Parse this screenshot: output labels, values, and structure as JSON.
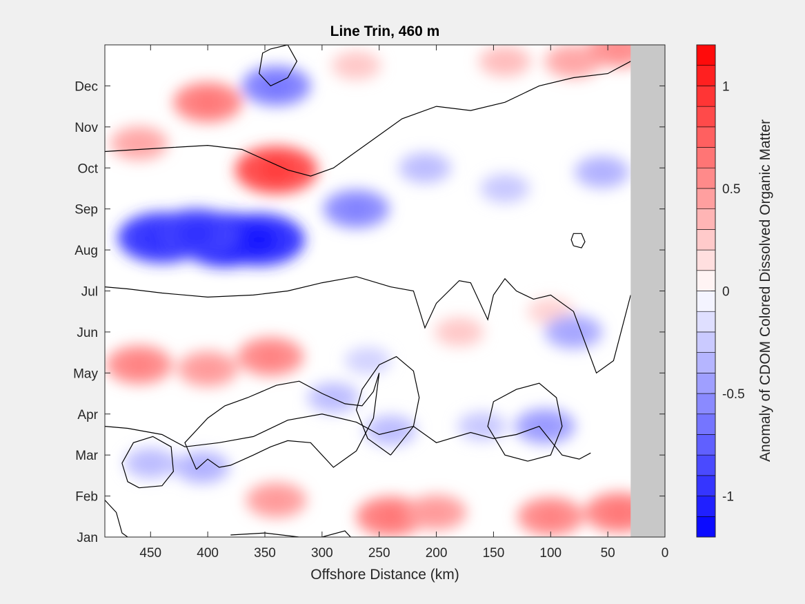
{
  "chart_data": {
    "type": "heatmap",
    "title": "Line Trin, 460 m",
    "xlabel": "Offshore Distance (km)",
    "ylabel": "",
    "colorbar_label": "Anomaly of CDOM Colored Dissolved Organic Matter",
    "x_ticks": [
      450,
      400,
      350,
      300,
      250,
      200,
      150,
      100,
      50,
      0
    ],
    "x_tick_labels": [
      "450",
      "400",
      "350",
      "300",
      "250",
      "200",
      "150",
      "100",
      "50",
      "0"
    ],
    "xlim": [
      490,
      0
    ],
    "x_reversed": true,
    "y_tick_labels": [
      "Jan",
      "Feb",
      "Mar",
      "Apr",
      "May",
      "Jun",
      "Jul",
      "Aug",
      "Sep",
      "Oct",
      "Nov",
      "Dec"
    ],
    "y_range_months": [
      1,
      13
    ],
    "data_x_extent_km": [
      490,
      30
    ],
    "no_data_color": "#c8c8c8",
    "colorbar_ticks": [
      -1,
      -0.5,
      0,
      0.5,
      1
    ],
    "colorbar_tick_labels": [
      "-1",
      "-0.5",
      "0",
      "0.5",
      "1"
    ],
    "clim": [
      -1.2,
      1.2
    ],
    "contour_interval": 0.1,
    "zero_contour": true,
    "colormap": "blue-white-red",
    "colors": {
      "negative": "#0000ff",
      "neutral": "#ffffff",
      "positive": "#ff0000"
    },
    "features": [
      {
        "x": 440,
        "month": 8.3,
        "value": -0.95
      },
      {
        "x": 385,
        "month": 8.25,
        "value": -1.05
      },
      {
        "x": 355,
        "month": 8.25,
        "value": -1.0
      },
      {
        "x": 410,
        "month": 8.4,
        "value": -0.9
      },
      {
        "x": 270,
        "month": 9.0,
        "value": -0.55
      },
      {
        "x": 210,
        "month": 10.0,
        "value": -0.3
      },
      {
        "x": 140,
        "month": 9.5,
        "value": -0.25
      },
      {
        "x": 55,
        "month": 9.9,
        "value": -0.35
      },
      {
        "x": 340,
        "month": 12.0,
        "value": -0.6
      },
      {
        "x": 340,
        "month": 9.95,
        "value": 0.85
      },
      {
        "x": 400,
        "month": 11.6,
        "value": 0.6
      },
      {
        "x": 460,
        "month": 10.6,
        "value": 0.4
      },
      {
        "x": 460,
        "month": 5.2,
        "value": 0.55
      },
      {
        "x": 345,
        "month": 5.4,
        "value": 0.55
      },
      {
        "x": 400,
        "month": 5.1,
        "value": 0.45
      },
      {
        "x": 180,
        "month": 6.0,
        "value": 0.25
      },
      {
        "x": 100,
        "month": 6.5,
        "value": 0.2
      },
      {
        "x": 290,
        "month": 4.4,
        "value": -0.3
      },
      {
        "x": 260,
        "month": 5.3,
        "value": -0.2
      },
      {
        "x": 240,
        "month": 3.6,
        "value": -0.3
      },
      {
        "x": 160,
        "month": 3.7,
        "value": -0.25
      },
      {
        "x": 105,
        "month": 3.7,
        "value": -0.45
      },
      {
        "x": 80,
        "month": 6.0,
        "value": -0.4
      },
      {
        "x": 450,
        "month": 2.8,
        "value": -0.3
      },
      {
        "x": 405,
        "month": 2.7,
        "value": -0.35
      },
      {
        "x": 240,
        "month": 1.5,
        "value": 0.6
      },
      {
        "x": 200,
        "month": 1.6,
        "value": 0.45
      },
      {
        "x": 100,
        "month": 1.5,
        "value": 0.55
      },
      {
        "x": 40,
        "month": 1.6,
        "value": 0.6
      },
      {
        "x": 340,
        "month": 1.9,
        "value": 0.45
      },
      {
        "x": 140,
        "month": 12.6,
        "value": 0.3
      },
      {
        "x": 80,
        "month": 12.6,
        "value": 0.4
      },
      {
        "x": 40,
        "month": 12.9,
        "value": 0.5
      },
      {
        "x": 270,
        "month": 12.5,
        "value": 0.25
      }
    ]
  }
}
